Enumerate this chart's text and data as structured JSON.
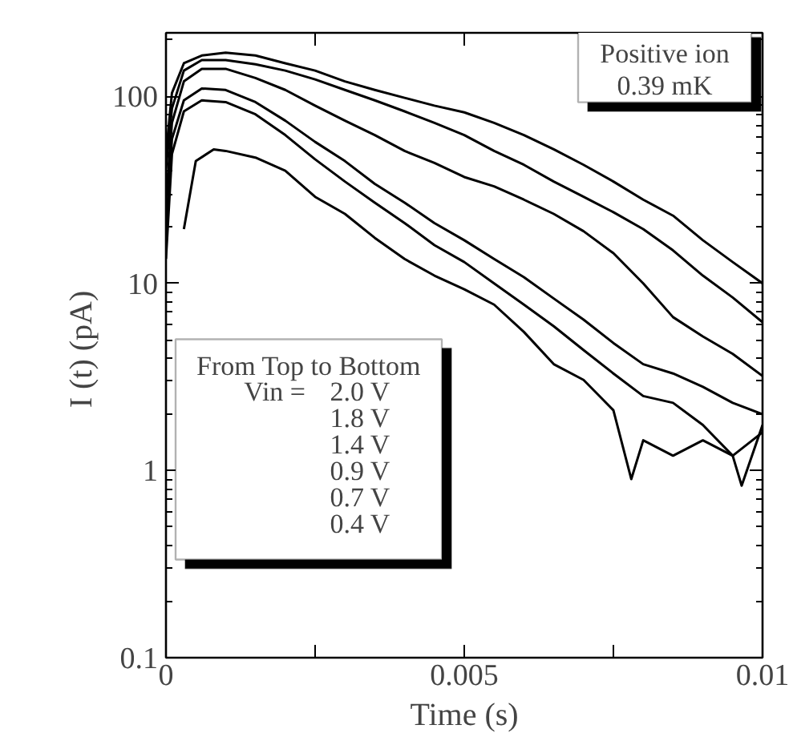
{
  "chart_data": {
    "type": "line",
    "xlabel": "Time (s)",
    "ylabel": "I (t)  (pA)",
    "xlim": [
      0,
      0.01
    ],
    "ylim": [
      0.1,
      218
    ],
    "log": "y",
    "xticks": [
      0,
      {
        "value": 0.0025,
        "label": null
      },
      0.005,
      {
        "value": 0.0075,
        "label": null
      },
      0.01
    ],
    "yticks": [
      0.1,
      1,
      10,
      100
    ],
    "grid": false,
    "marker": "none",
    "line_style": "solid",
    "annotations": [
      "Positive ion",
      "0.39 mK",
      "From Top to Bottom",
      "Vin =",
      "2.0 V",
      "1.8 V",
      "1.4 V",
      "0.9 V",
      "0.7 V",
      "0.4 V"
    ],
    "x": [
      0,
      0.0001,
      0.0003,
      0.0006,
      0.001,
      0.0015,
      0.002,
      0.0025,
      0.003,
      0.0035,
      0.004,
      0.0045,
      0.005,
      0.0055,
      0.006,
      0.0065,
      0.007,
      0.0075,
      0.008,
      0.0085,
      0.009,
      0.0095,
      0.01
    ],
    "series": [
      {
        "color": "#000000",
        "values": [
          49,
          104,
          150,
          165,
          171,
          165,
          150,
          137,
          120,
          108,
          98,
          89,
          82,
          72,
          62,
          52,
          43,
          35,
          28,
          23,
          17,
          13,
          10
        ]
      },
      {
        "color": "#000000",
        "values": [
          41,
          86,
          137,
          156,
          156,
          148,
          137,
          123,
          108,
          95,
          83,
          72,
          62,
          51,
          43,
          35,
          29,
          24,
          19.5,
          15,
          11,
          8.4,
          6.2
        ]
      },
      {
        "color": "#000000",
        "values": [
          28,
          72,
          120,
          140,
          140,
          125,
          108,
          89,
          74,
          62,
          51,
          44,
          37,
          33,
          28,
          23.5,
          19,
          14.5,
          10,
          6.6,
          5.2,
          4.2,
          3.2
        ]
      },
      {
        "color": "#000000",
        "values": [
          19.5,
          59,
          95,
          110,
          108,
          93,
          74,
          57,
          45,
          34,
          27,
          21,
          17,
          13.5,
          10.8,
          8.3,
          6.4,
          4.8,
          3.7,
          3.3,
          2.8,
          2.3,
          2.0
        ]
      },
      {
        "color": "#000000",
        "values": [
          13.5,
          49,
          83,
          95,
          93,
          80,
          62,
          46,
          35,
          27,
          21,
          16,
          13,
          10,
          7.7,
          5.9,
          4.4,
          3.3,
          2.5,
          2.3,
          1.75,
          1.2,
          1.6
        ]
      },
      {
        "color": "#000000",
        "x": [
          0.0003,
          0.0005,
          0.0008,
          0.001,
          0.0015,
          0.002,
          0.0025,
          0.003,
          0.0035,
          0.004,
          0.0045,
          0.005,
          0.0055,
          0.006,
          0.0065,
          0.007,
          0.0075,
          0.0078,
          0.008,
          0.0085,
          0.009,
          0.0095,
          0.00965,
          0.01
        ],
        "values": [
          19.5,
          45,
          52,
          51,
          47,
          40,
          29,
          23.5,
          17.5,
          13.5,
          11,
          9.3,
          7.7,
          5.5,
          3.7,
          3.05,
          2.1,
          0.9,
          1.45,
          1.2,
          1.45,
          1.2,
          0.83,
          1.75
        ]
      }
    ]
  }
}
